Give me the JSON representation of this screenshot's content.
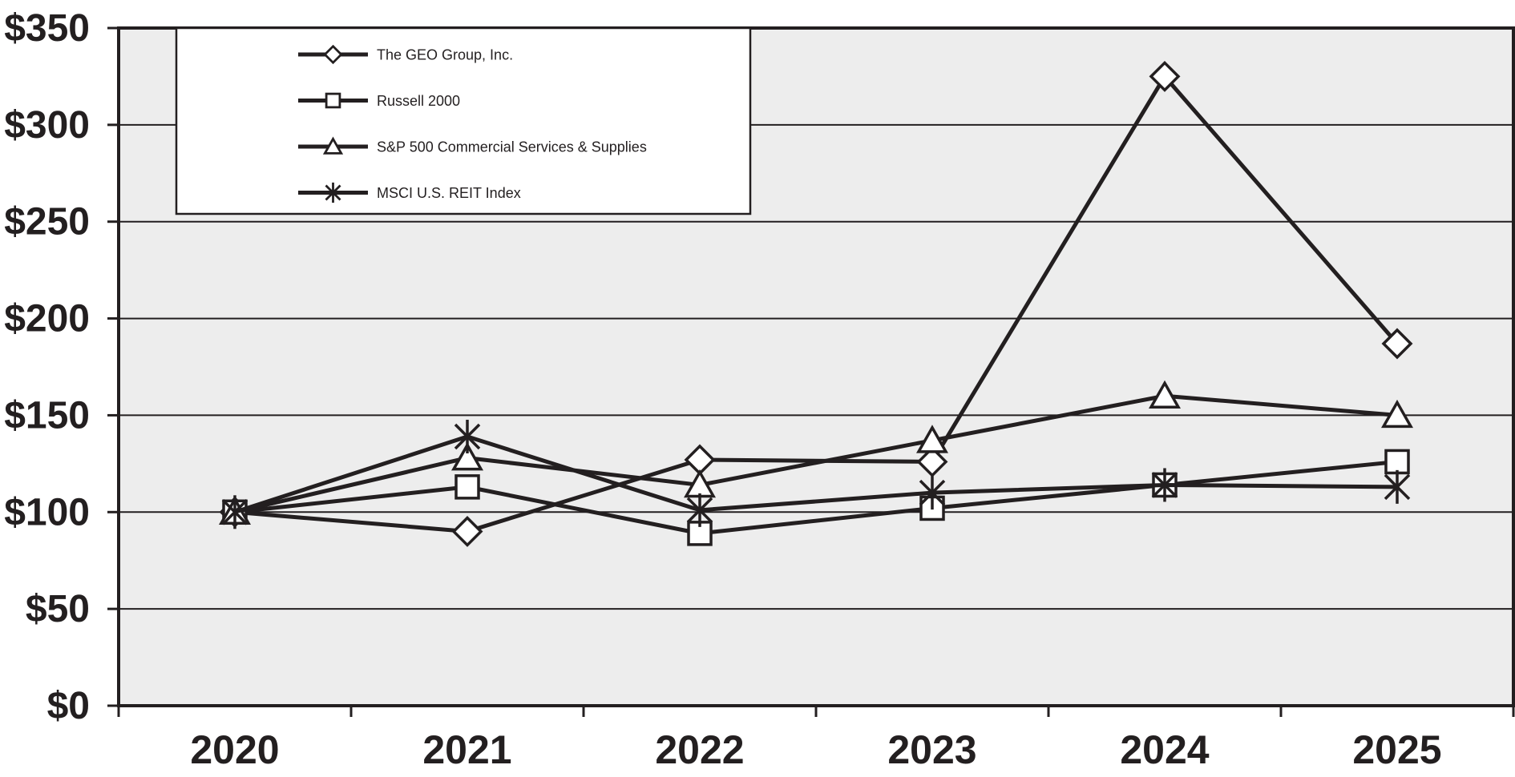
{
  "chart_data": {
    "type": "line",
    "title": "",
    "categories": [
      "2020",
      "2021",
      "2022",
      "2023",
      "2024",
      "2025"
    ],
    "series": [
      {
        "name": "The GEO Group, Inc.",
        "marker": "diamond",
        "values": [
          100,
          90,
          127,
          126,
          325,
          187
        ]
      },
      {
        "name": "Russell 2000",
        "marker": "square",
        "values": [
          100,
          113,
          89,
          102,
          114,
          126
        ]
      },
      {
        "name": "S&P 500 Commercial Services & Supplies",
        "marker": "triangle",
        "values": [
          100,
          128,
          114,
          137,
          160,
          150
        ]
      },
      {
        "name": "MSCI U.S. REIT Index",
        "marker": "star6",
        "values": [
          100,
          139,
          101,
          110,
          114,
          113
        ]
      }
    ],
    "x_axis": {
      "tick_labels": [
        "2020",
        "2021",
        "2022",
        "2023",
        "2024",
        "2025"
      ]
    },
    "y_axis": {
      "min": 0,
      "max": 350,
      "step": 50,
      "tick_labels": [
        "$0",
        "$50",
        "$100",
        "$150",
        "$200",
        "$250",
        "$300",
        "$350"
      ]
    },
    "legend_position": "top-left",
    "grid": true,
    "colors": {
      "line": "#231f20",
      "plot_bg": "#ededed",
      "marker_fill": "#ffffff",
      "legend_bg": "#ffffff",
      "page_bg": "#ffffff"
    }
  }
}
